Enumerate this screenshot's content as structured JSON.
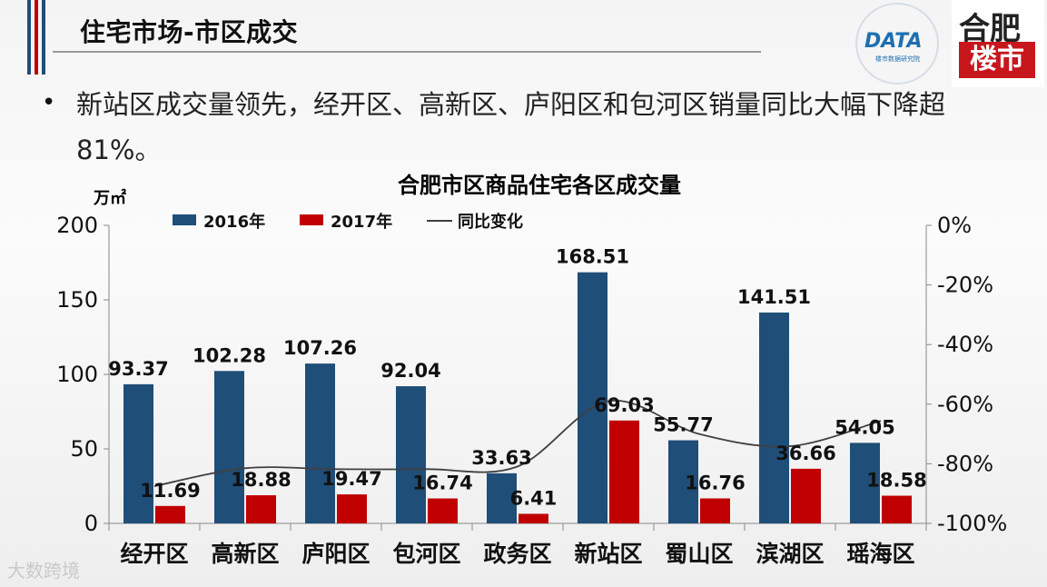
{
  "header": {
    "title": "住宅市场-市区成交",
    "bullet": "新站区成交量领先，经开区、高新区、庐阳区和包河区销量同比大幅下降超81%。"
  },
  "logos": {
    "data_logo_text": "DATA",
    "data_logo_sub": "楼市数据研究院",
    "lou_logo_top": "合肥",
    "lou_logo_bottom": "楼市"
  },
  "watermark": "大数跨境",
  "colors": {
    "series_2016": "#1f4e79",
    "series_2017": "#c00000",
    "yoy_line": "#404040",
    "accent_red": "#c00000",
    "accent_blue": "#1f4e79"
  },
  "chart_data": {
    "type": "bar",
    "title": "合肥市区商品住宅各区成交量",
    "ylabel": "万㎡",
    "categories": [
      "经开区",
      "高新区",
      "庐阳区",
      "包河区",
      "政务区",
      "新站区",
      "蜀山区",
      "滨湖区",
      "瑶海区"
    ],
    "series": [
      {
        "name": "2016年",
        "values": [
          93.37,
          102.28,
          107.26,
          92.04,
          33.63,
          168.51,
          55.77,
          141.51,
          54.05
        ]
      },
      {
        "name": "2017年",
        "values": [
          11.69,
          18.88,
          19.47,
          16.74,
          6.41,
          69.03,
          16.76,
          36.66,
          18.58
        ]
      },
      {
        "name": "同比变化",
        "type": "line",
        "axis": "right",
        "values": [
          -87.5,
          -81.5,
          -81.8,
          -81.8,
          -80.9,
          -59.0,
          -70.0,
          -74.1,
          -65.6
        ]
      }
    ],
    "ylim": [
      0,
      200
    ],
    "y_ticks": [
      "0",
      "50",
      "100",
      "150",
      "200"
    ],
    "y2lim": [
      -100,
      0
    ],
    "y2_ticks": [
      "-100%",
      "-80%",
      "-60%",
      "-40%",
      "-20%",
      "0%"
    ],
    "legend": "top-left",
    "grid": false
  }
}
